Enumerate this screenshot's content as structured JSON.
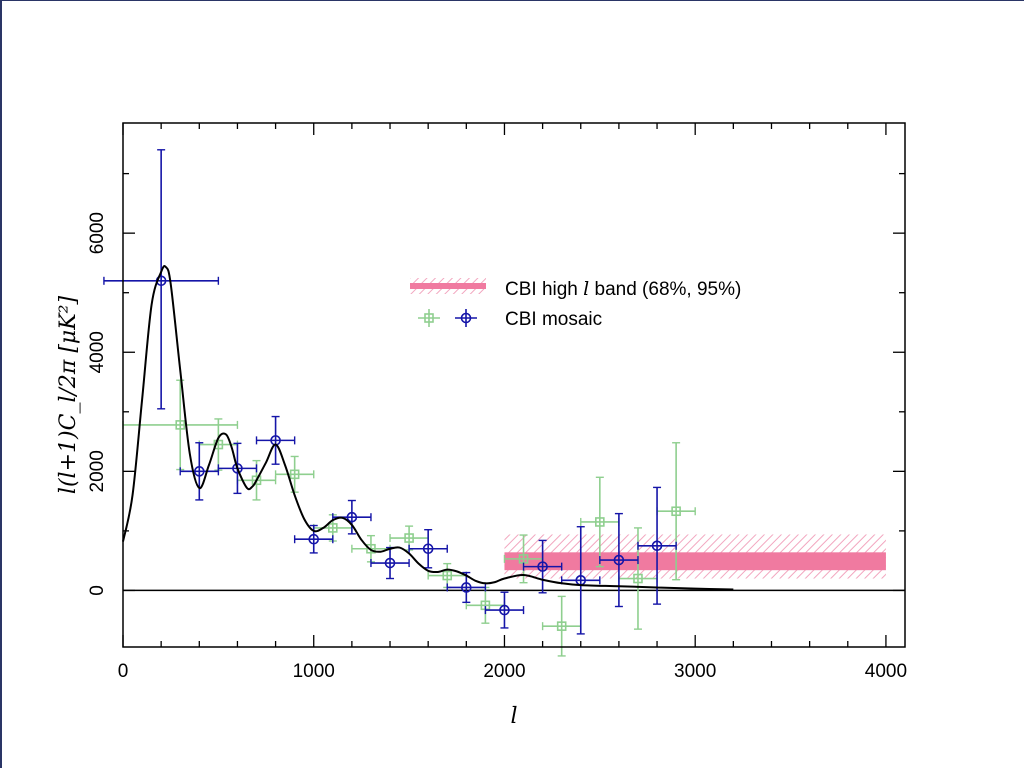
{
  "colors": {
    "mosaic": "#1515a8",
    "green": "#8fcf8f",
    "band": "#f07aa0",
    "band_hatch": "#f2a6bf",
    "model": "#000000",
    "frame": "#2a3566"
  },
  "chart_data": {
    "type": "scatter",
    "title": "",
    "xlabel": "l",
    "ylabel": "l(l+1)C_l/2π [μK²]",
    "xlim": [
      0,
      4100
    ],
    "ylim": [
      -950,
      7850
    ],
    "xticks": [
      0,
      1000,
      2000,
      3000,
      4000
    ],
    "yticks": [
      0,
      2000,
      4000,
      6000
    ],
    "x_tick_labels": [
      "0",
      "1000",
      "2000",
      "3000",
      "4000"
    ],
    "y_tick_labels": [
      "0",
      "2000",
      "4000",
      "6000"
    ],
    "grid": false,
    "legend_position": "upper-right",
    "legend": {
      "band_label": "CBI high l band (68%, 95%)",
      "mosaic_label": "CBI mosaic"
    },
    "high_l_band": {
      "x_range": [
        2000,
        4000
      ],
      "inner_68": [
        340,
        640
      ],
      "outer_95": [
        200,
        940
      ]
    },
    "series": [
      {
        "name": "CBI mosaic",
        "marker": "circle",
        "points": [
          {
            "x": 200,
            "y": 5200,
            "xerr": 300,
            "yerr": [
              2150,
              2200
            ]
          },
          {
            "x": 400,
            "y": 2000,
            "xerr": 100,
            "yerr": 480
          },
          {
            "x": 600,
            "y": 2050,
            "xerr": 100,
            "yerr": 420
          },
          {
            "x": 800,
            "y": 2520,
            "xerr": 100,
            "yerr": 400
          },
          {
            "x": 1000,
            "y": 860,
            "xerr": 100,
            "yerr": 230
          },
          {
            "x": 1200,
            "y": 1230,
            "xerr": 100,
            "yerr": 280
          },
          {
            "x": 1400,
            "y": 460,
            "xerr": 100,
            "yerr": 260
          },
          {
            "x": 1600,
            "y": 700,
            "xerr": 100,
            "yerr": 320
          },
          {
            "x": 1800,
            "y": 50,
            "xerr": 100,
            "yerr": 250
          },
          {
            "x": 2000,
            "y": -330,
            "xerr": 100,
            "yerr": 300
          },
          {
            "x": 2200,
            "y": 400,
            "xerr": 100,
            "yerr": 440
          },
          {
            "x": 2400,
            "y": 170,
            "xerr": 100,
            "yerr": 900
          },
          {
            "x": 2600,
            "y": 510,
            "xerr": 100,
            "yerr": 780
          },
          {
            "x": 2800,
            "y": 750,
            "xerr": 100,
            "yerr": 980
          }
        ]
      },
      {
        "marker": "square",
        "points": [
          {
            "x": 300,
            "y": 2780,
            "xerr": 300,
            "yerr": 750
          },
          {
            "x": 500,
            "y": 2450,
            "xerr": 100,
            "yerr": 430
          },
          {
            "x": 700,
            "y": 1850,
            "xerr": 100,
            "yerr": 330
          },
          {
            "x": 900,
            "y": 1950,
            "xerr": 100,
            "yerr": 300
          },
          {
            "x": 1100,
            "y": 1050,
            "xerr": 100,
            "yerr": 220
          },
          {
            "x": 1300,
            "y": 700,
            "xerr": 100,
            "yerr": 220
          },
          {
            "x": 1500,
            "y": 880,
            "xerr": 100,
            "yerr": 200
          },
          {
            "x": 1700,
            "y": 250,
            "xerr": 100,
            "yerr": 200
          },
          {
            "x": 1900,
            "y": -250,
            "xerr": 100,
            "yerr": 300
          },
          {
            "x": 2100,
            "y": 530,
            "xerr": 100,
            "yerr": 400
          },
          {
            "x": 2300,
            "y": -600,
            "xerr": 100,
            "yerr": 500
          },
          {
            "x": 2500,
            "y": 1150,
            "xerr": 100,
            "yerr": 750
          },
          {
            "x": 2700,
            "y": 200,
            "xerr": 100,
            "yerr": 850
          },
          {
            "x": 2900,
            "y": 1330,
            "xerr": 100,
            "yerr": 1150
          }
        ]
      }
    ],
    "model_curve": {
      "x": [
        0,
        50,
        100,
        150,
        200,
        225,
        250,
        300,
        350,
        400,
        450,
        500,
        540,
        570,
        600,
        650,
        680,
        700,
        750,
        800,
        850,
        900,
        950,
        1000,
        1050,
        1100,
        1150,
        1200,
        1250,
        1300,
        1350,
        1400,
        1450,
        1500,
        1550,
        1600,
        1650,
        1700,
        1750,
        1800,
        1850,
        1900,
        1950,
        2000,
        2100,
        2200,
        2300,
        2400,
        2600,
        2800,
        3000,
        3200
      ],
      "y": [
        820,
        1600,
        3200,
        4800,
        5350,
        5430,
        5150,
        3700,
        2300,
        1720,
        2100,
        2560,
        2620,
        2400,
        2050,
        1720,
        1750,
        1850,
        2150,
        2450,
        2100,
        1600,
        1200,
        1000,
        1050,
        1180,
        1220,
        1100,
        850,
        680,
        650,
        700,
        720,
        620,
        450,
        330,
        310,
        350,
        320,
        250,
        160,
        120,
        140,
        200,
        260,
        180,
        120,
        90,
        70,
        50,
        30,
        15
      ]
    },
    "zero_line": 0
  }
}
